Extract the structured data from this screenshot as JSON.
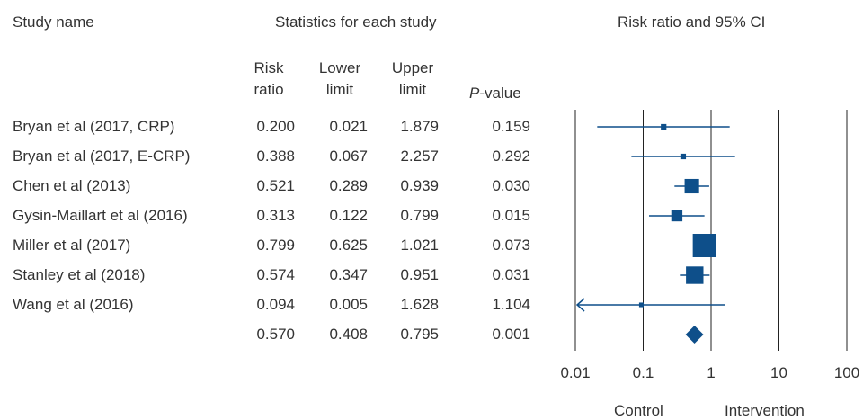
{
  "headers": {
    "study_name": "Study name",
    "statistics": "Statistics for each study",
    "plot_title": "Risk ratio and 95% CI"
  },
  "columns": {
    "risk_ratio": [
      "Risk",
      "ratio"
    ],
    "lower_limit": [
      "Lower",
      "limit"
    ],
    "upper_limit": [
      "Upper",
      "limit"
    ],
    "p_value": "-value",
    "p_value_italic": "P"
  },
  "footer": {
    "left": "Control",
    "right": "Intervention"
  },
  "colors": {
    "marker": "#0e4f8a",
    "text": "#333333",
    "axis": "#222222"
  },
  "chart_data": {
    "type": "forest",
    "x_scale": "log",
    "xlim": [
      0.01,
      100
    ],
    "x_ticks": [
      "0.01",
      "0.1",
      "1",
      "10",
      "100"
    ],
    "x_tick_values": [
      0.01,
      0.1,
      1,
      10,
      100
    ],
    "rows": [
      {
        "study": "Bryan et al (2017, CRP)",
        "risk_ratio": "0.200",
        "lower": "0.021",
        "upper": "1.879",
        "p": "0.159",
        "weight": 0.1
      },
      {
        "study": "Bryan et al (2017, E-CRP)",
        "risk_ratio": "0.388",
        "lower": "0.067",
        "upper": "2.257",
        "p": "0.292",
        "weight": 0.1
      },
      {
        "study": "Chen et al (2013)",
        "risk_ratio": "0.521",
        "lower": "0.289",
        "upper": "0.939",
        "p": "0.030",
        "weight": 0.55
      },
      {
        "study": "Gysin-Maillart et al (2016)",
        "risk_ratio": "0.313",
        "lower": "0.122",
        "upper": "0.799",
        "p": "0.015",
        "weight": 0.38
      },
      {
        "study": "Miller et al (2017)",
        "risk_ratio": "0.799",
        "lower": "0.625",
        "upper": "1.021",
        "p": "0.073",
        "weight": 1.0
      },
      {
        "study": "Stanley et al (2018)",
        "risk_ratio": "0.574",
        "lower": "0.347",
        "upper": "0.951",
        "p": "0.031",
        "weight": 0.7
      },
      {
        "study": "Wang et al (2016)",
        "risk_ratio": "0.094",
        "lower": "0.005",
        "upper": "1.628",
        "p": "1.104",
        "weight": 0.05
      }
    ],
    "summary": {
      "study": "",
      "risk_ratio": "0.570",
      "lower": "0.408",
      "upper": "0.795",
      "p": "0.001"
    }
  }
}
